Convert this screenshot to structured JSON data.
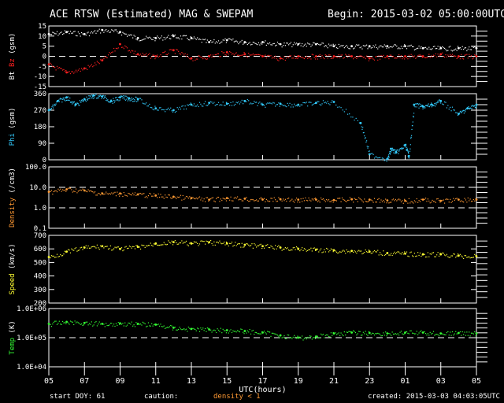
{
  "header": {
    "title": "ACE RTSW (Estimated) MAG & SWEPAM",
    "begin": "Begin: 2015-03-02 05:00:00UTC"
  },
  "footer": {
    "start_doy": "start DOY:  61",
    "caution": "caution:",
    "density_note": "density < 1",
    "created": "created: 2015-03-03 04:03:05UTC"
  },
  "colors": {
    "background": "#000000",
    "frame": "#ffffff",
    "bt": "#ffffff",
    "bz": "#ff2020",
    "phi": "#33ccff",
    "density": "#ff9933",
    "speed": "#ffff33",
    "temp": "#33ff33",
    "caution": "#ff9933"
  },
  "chart_data": {
    "type": "scatter",
    "xlabel": "UTC(hours)",
    "xlim": [
      0,
      24
    ],
    "x_ticks": [
      "05",
      "07",
      "09",
      "11",
      "13",
      "15",
      "17",
      "19",
      "21",
      "23",
      "01",
      "03",
      "05"
    ],
    "panels": [
      {
        "id": "mag",
        "ylabels": [
          {
            "text": "Bt",
            "color": "#ffffff"
          },
          {
            "text": "Bz",
            "color": "#ff2020"
          },
          {
            "text": "(gsm)",
            "color": "#ffffff"
          }
        ],
        "ylim": [
          -15,
          15
        ],
        "yticks": [
          "15",
          "10",
          "5",
          "0",
          "-5",
          "-10",
          "-15"
        ],
        "ytick_values": [
          15,
          10,
          5,
          0,
          -5,
          -10,
          -15
        ],
        "dashed_at": [
          0
        ],
        "series": [
          {
            "name": "Bt",
            "color": "#ffffff",
            "x": [
              0,
              1,
              2,
              3,
              4,
              5,
              6,
              7,
              8,
              9,
              10,
              11,
              12,
              13,
              14,
              15,
              16,
              17,
              18,
              19,
              20,
              21,
              22,
              23,
              24
            ],
            "y": [
              11,
              12,
              11,
              13,
              12,
              9,
              9,
              10,
              9,
              7,
              8,
              7,
              7,
              6,
              6,
              6,
              5,
              5,
              5,
              5,
              5,
              4,
              4,
              4,
              4
            ]
          },
          {
            "name": "Bz",
            "color": "#ff2020",
            "x": [
              0,
              1,
              2,
              3,
              4,
              5,
              6,
              7,
              8,
              9,
              10,
              11,
              12,
              13,
              14,
              15,
              16,
              17,
              18,
              19,
              20,
              21,
              22,
              23,
              24
            ],
            "y": [
              -4,
              -8,
              -6,
              -2,
              6,
              1,
              0,
              3,
              -1,
              0,
              2,
              1,
              0,
              -1,
              0,
              0,
              0,
              0,
              -1,
              0,
              0,
              0,
              1,
              0,
              0
            ]
          }
        ]
      },
      {
        "id": "phi",
        "ylabels": [
          {
            "text": "Phi",
            "color": "#33ccff"
          },
          {
            "text": "(gsm)",
            "color": "#ffffff"
          }
        ],
        "ylim": [
          0,
          360
        ],
        "yticks": [
          "360",
          "270",
          "180",
          "90",
          "0"
        ],
        "ytick_values": [
          360,
          270,
          180,
          90,
          0
        ],
        "dashed_at": [],
        "series": [
          {
            "name": "Phi",
            "color": "#33ccff",
            "x": [
              0,
              0.5,
              1,
              1.5,
              2,
              2.5,
              3,
              3.5,
              4,
              4.5,
              5,
              6,
              7,
              8,
              9,
              10,
              11,
              12,
              13,
              14,
              15,
              16,
              17.5,
              18,
              19,
              19.2,
              19.5,
              20,
              20.2,
              20.5,
              21,
              21.5,
              22,
              23,
              23.5,
              24
            ],
            "y": [
              270,
              320,
              340,
              300,
              330,
              350,
              345,
              320,
              340,
              335,
              330,
              280,
              270,
              300,
              310,
              305,
              320,
              300,
              305,
              300,
              310,
              315,
              200,
              30,
              5,
              60,
              40,
              80,
              20,
              300,
              290,
              300,
              320,
              250,
              280,
              300
            ]
          }
        ]
      },
      {
        "id": "density",
        "ylabels": [
          {
            "text": "Density",
            "color": "#ff9933"
          },
          {
            "text": "(/cm3)",
            "color": "#ffffff"
          }
        ],
        "ylim": [
          0.1,
          100
        ],
        "yscale": "log",
        "yticks": [
          "100.0",
          "10.0",
          "1.0",
          "0.1"
        ],
        "ytick_values": [
          100,
          10,
          1,
          0.1
        ],
        "dashed_at": [
          10,
          1
        ],
        "series": [
          {
            "name": "Density",
            "color": "#ff9933",
            "x": [
              0,
              1,
              2,
              3,
              4,
              5,
              6,
              7,
              8,
              9,
              10,
              11,
              12,
              13,
              14,
              15,
              16,
              17,
              18,
              19,
              20,
              21,
              22,
              23,
              24
            ],
            "y": [
              6,
              8,
              7,
              5,
              5,
              4.5,
              4,
              3.5,
              3,
              2.5,
              3,
              2.8,
              2.5,
              2.6,
              2.5,
              2.5,
              2.4,
              2.6,
              2.5,
              2.3,
              2.2,
              2.5,
              2.2,
              2.5,
              2.5
            ]
          }
        ]
      },
      {
        "id": "speed",
        "ylabels": [
          {
            "text": "Speed",
            "color": "#ffff33"
          },
          {
            "text": "(km/s)",
            "color": "#ffffff"
          }
        ],
        "ylim": [
          200,
          700
        ],
        "yticks": [
          "700",
          "600",
          "500",
          "400",
          "300",
          "200"
        ],
        "ytick_values": [
          700,
          600,
          500,
          400,
          300,
          200
        ],
        "dashed_at": [],
        "series": [
          {
            "name": "Speed",
            "color": "#ffff33",
            "x": [
              0,
              1,
              2,
              3,
              4,
              5,
              6,
              7,
              8,
              9,
              10,
              11,
              12,
              13,
              14,
              15,
              16,
              17,
              18,
              19,
              20,
              21,
              22,
              23,
              24
            ],
            "y": [
              540,
              580,
              610,
              620,
              600,
              615,
              640,
              650,
              640,
              650,
              640,
              630,
              620,
              610,
              600,
              595,
              590,
              585,
              580,
              570,
              565,
              560,
              560,
              550,
              545
            ]
          }
        ]
      },
      {
        "id": "temp",
        "ylabels": [
          {
            "text": "Temp",
            "color": "#33ff33"
          },
          {
            "text": "(K)",
            "color": "#ffffff"
          }
        ],
        "ylim": [
          10000,
          1000000
        ],
        "yscale": "log",
        "yticks": [
          "1.0E+06",
          "1.0E+05",
          "1.0E+04"
        ],
        "ytick_values": [
          1000000,
          100000,
          10000
        ],
        "dashed_at": [
          100000
        ],
        "series": [
          {
            "name": "Temp",
            "color": "#33ff33",
            "x": [
              0,
              1,
              2,
              3,
              4,
              5,
              6,
              7,
              8,
              9,
              10,
              11,
              12,
              13,
              14,
              15,
              16,
              17,
              18,
              19,
              20,
              21,
              22,
              23,
              24
            ],
            "y": [
              300000,
              350000,
              320000,
              300000,
              310000,
              300000,
              280000,
              220000,
              200000,
              190000,
              180000,
              170000,
              150000,
              120000,
              100000,
              110000,
              140000,
              150000,
              145000,
              140000,
              150000,
              150000,
              140000,
              145000,
              140000
            ]
          }
        ]
      }
    ]
  }
}
